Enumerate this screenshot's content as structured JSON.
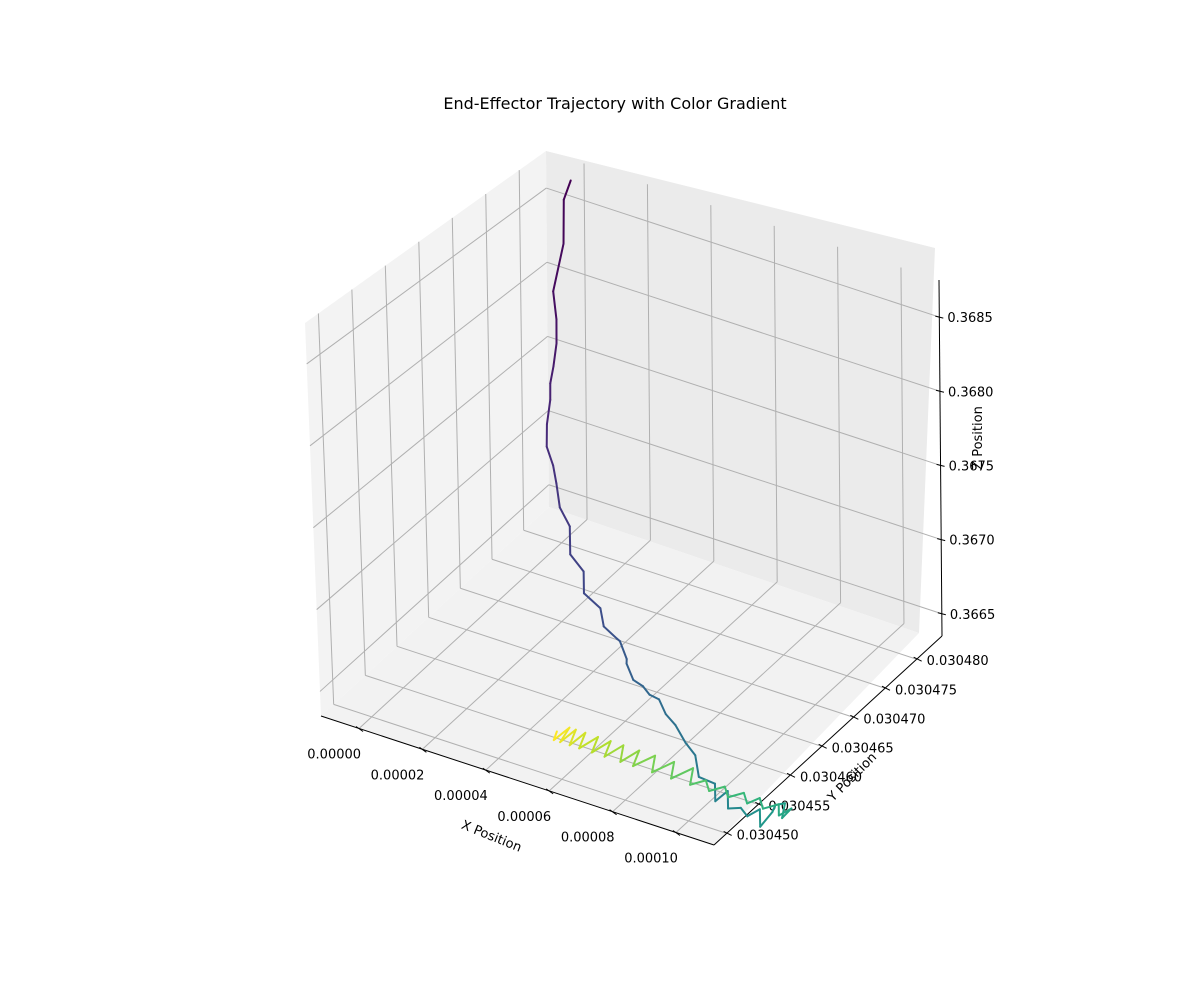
{
  "chart_data": {
    "type": "line",
    "projection": "3d",
    "title": "End-Effector Trajectory with Color Gradient",
    "xlabel": "X Position",
    "ylabel": "Y Position",
    "zlabel": "Z Position",
    "colormap": "viridis",
    "grid": true,
    "xlim": [
      -1.2e-05,
      0.000112
    ],
    "ylim": [
      0.030448,
      0.030484
    ],
    "zlim": [
      0.36635,
      0.36875
    ],
    "x_ticks": [
      "0.00000",
      "0.00002",
      "0.00004",
      "0.00006",
      "0.00008",
      "0.00010"
    ],
    "y_ticks": [
      "0.030450",
      "0.030455",
      "0.030460",
      "0.030465",
      "0.030470",
      "0.030475",
      "0.030480"
    ],
    "z_ticks": [
      "0.3665",
      "0.3670",
      "0.3675",
      "0.3680",
      "0.3685"
    ],
    "trajectory": {
      "x": [
        0.0,
        2e-06,
        6e-06,
        1.1e-05,
        1.4e-05,
        1.6e-05,
        1.7e-05,
        1.8e-05,
        2e-05,
        2.3e-05,
        2.7e-05,
        3.1e-05,
        3.4e-05,
        3.7e-05,
        4e-05,
        4.2e-05,
        4.4e-05,
        4.6e-05,
        4.9e-05,
        5.2e-05,
        5.4e-05,
        5.7e-05,
        5.9e-05,
        6.1e-05,
        6.3e-05,
        6.6e-05,
        6.8e-05,
        7.1e-05,
        7.3e-05,
        7.6e-05,
        7.9e-05,
        8.2e-05,
        8.5e-05,
        8.8e-05,
        9e-05,
        9.2e-05,
        9.4e-05,
        9.6e-05,
        9.8e-05,
        0.0001,
        0.000102,
        0.000104,
        0.000105,
        0.000106,
        0.000107,
        0.000108,
        0.000106,
        0.000104,
        0.000101,
        9.8e-05,
        9.6e-05,
        9.3e-05,
        9e-05,
        8.7e-05,
        8.4e-05,
        8.1e-05,
        7.8e-05,
        7.5e-05,
        7.2e-05,
        6.9e-05,
        6.6e-05,
        6.3e-05,
        6e-05,
        5.8e-05,
        5.6e-05,
        5.3e-05,
        5.1e-05,
        4.9e-05,
        4.7e-05,
        4.5e-05,
        4.3e-05,
        4.1e-05,
        4e-05,
        3.8e-05,
        3.7e-05,
        3.6e-05,
        3.5e-05,
        3.4e-05
      ],
      "y": [
        0.030482,
        0.03048,
        0.030478,
        0.030474,
        0.030473,
        0.030472,
        0.030471,
        0.03047,
        0.030469,
        0.030467,
        0.030465,
        0.030464,
        0.030463,
        0.030462,
        0.030462,
        0.030461,
        0.030462,
        0.030461,
        0.030462,
        0.030461,
        0.030462,
        0.030461,
        0.030461,
        0.03046,
        0.03046,
        0.03046,
        0.03046,
        0.03046,
        0.03046,
        0.03046,
        0.03046,
        0.03046,
        0.030459,
        0.03046,
        0.030459,
        0.03046,
        0.030459,
        0.03046,
        0.03046,
        0.030461,
        0.03046,
        0.030461,
        0.030461,
        0.030462,
        0.030461,
        0.030462,
        0.030461,
        0.030462,
        0.030461,
        0.030462,
        0.030461,
        0.030462,
        0.030461,
        0.030462,
        0.030461,
        0.030462,
        0.030461,
        0.030463,
        0.030461,
        0.030463,
        0.030461,
        0.030463,
        0.030461,
        0.030463,
        0.030461,
        0.030463,
        0.030461,
        0.030463,
        0.030461,
        0.030463,
        0.030461,
        0.030463,
        0.030461,
        0.030463,
        0.030461,
        0.030463,
        0.030461,
        0.030462
      ],
      "z": [
        0.3687,
        0.36865,
        0.36845,
        0.3683,
        0.36817,
        0.36806,
        0.36795,
        0.36788,
        0.36782,
        0.36775,
        0.3677,
        0.36764,
        0.36758,
        0.36748,
        0.36738,
        0.36725,
        0.36712,
        0.36703,
        0.36692,
        0.36686,
        0.36676,
        0.3668,
        0.3667,
        0.36672,
        0.36663,
        0.36661,
        0.36657,
        0.36656,
        0.36648,
        0.36643,
        0.36634,
        0.36628,
        0.3662,
        0.36614,
        0.36608,
        0.36612,
        0.36606,
        0.36604,
        0.366,
        0.36602,
        0.36596,
        0.36603,
        0.36608,
        0.36606,
        0.36601,
        0.36604,
        0.36602,
        0.36604,
        0.36603,
        0.36604,
        0.36603,
        0.36604,
        0.36603,
        0.36604,
        0.36603,
        0.36604,
        0.36603,
        0.36604,
        0.36603,
        0.36604,
        0.36603,
        0.36604,
        0.36603,
        0.36604,
        0.36603,
        0.36604,
        0.36603,
        0.36604,
        0.36603,
        0.36604,
        0.36603,
        0.36604,
        0.36603,
        0.36604,
        0.36603,
        0.36604,
        0.36603,
        0.36604
      ]
    }
  }
}
